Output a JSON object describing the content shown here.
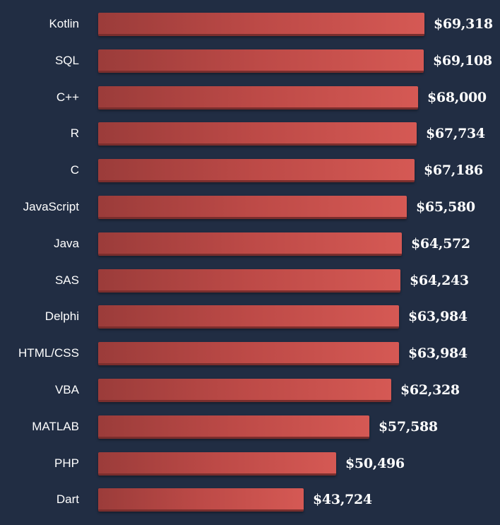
{
  "chart_data": {
    "type": "bar",
    "orientation": "horizontal",
    "categories": [
      "Kotlin",
      "SQL",
      "C++",
      "R",
      "C",
      "JavaScript",
      "Java",
      "SAS",
      "Delphi",
      "HTML/CSS",
      "VBA",
      "MATLAB",
      "PHP",
      "Dart"
    ],
    "values": [
      69318,
      69108,
      68000,
      67734,
      67186,
      65580,
      64572,
      64243,
      63984,
      63984,
      62328,
      57588,
      50496,
      43724
    ],
    "value_labels": [
      "$69,318",
      "$69,108",
      "$68,000",
      "$67,734",
      "$67,186",
      "$65,580",
      "$64,572",
      "$64,243",
      "$63,984",
      "$63,984",
      "$62,328",
      "$57,588",
      "$50,496",
      "$43,724"
    ],
    "xlim": [
      0,
      69318
    ],
    "title": "",
    "xlabel": "",
    "ylabel": ""
  },
  "colors": {
    "background": "#212d43",
    "bar": "#c44e4b",
    "text": "#ffffff"
  }
}
